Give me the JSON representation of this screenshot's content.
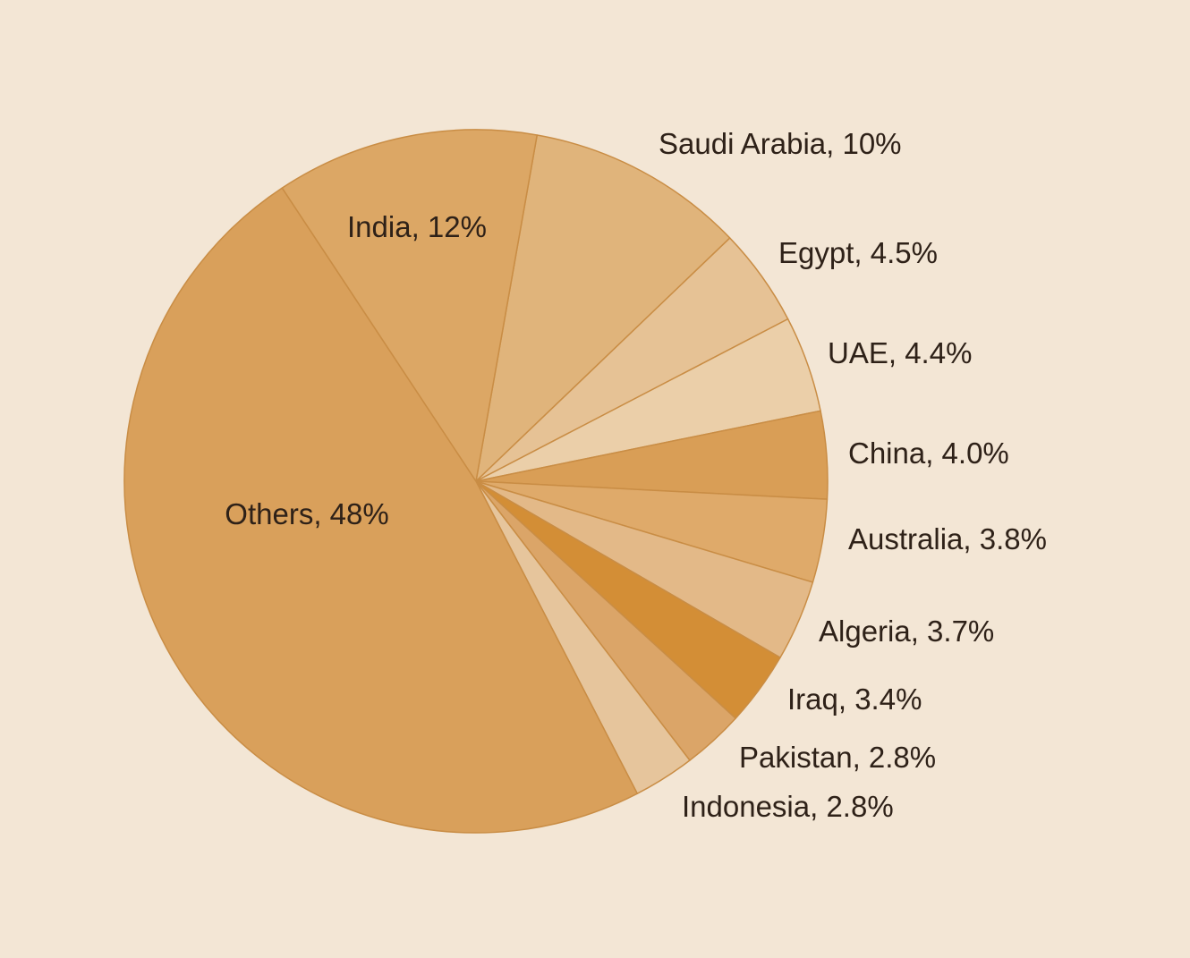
{
  "chart_data": {
    "type": "pie",
    "title": "",
    "slices": [
      {
        "label": "Saudi Arabia, 10%",
        "name": "Saudi Arabia",
        "value": 10,
        "color": "#e0b47b"
      },
      {
        "label": "Egypt, 4.5%",
        "name": "Egypt",
        "value": 4.5,
        "color": "#e6c295"
      },
      {
        "label": "UAE, 4.4%",
        "name": "UAE",
        "value": 4.4,
        "color": "#ebcfa9"
      },
      {
        "label": "China, 4.0%",
        "name": "China",
        "value": 4.0,
        "color": "#d99e56"
      },
      {
        "label": "Australia, 3.8%",
        "name": "Australia",
        "value": 3.8,
        "color": "#dfaa6a"
      },
      {
        "label": "Algeria, 3.7%",
        "name": "Algeria",
        "value": 3.7,
        "color": "#e3b988"
      },
      {
        "label": "Iraq, 3.4%",
        "name": "Iraq",
        "value": 3.4,
        "color": "#d38e36"
      },
      {
        "label": "Pakistan, 2.8%",
        "name": "Pakistan",
        "value": 2.8,
        "color": "#dba568"
      },
      {
        "label": "Indonesia, 2.8%",
        "name": "Indonesia",
        "value": 2.8,
        "color": "#e6c59c"
      },
      {
        "label": "Others, 48%",
        "name": "Others",
        "value": 48,
        "color": "#d9a05b"
      },
      {
        "label": "India, 12%",
        "name": "India",
        "value": 12,
        "color": "#dca765"
      }
    ],
    "start_angle_deg": 10,
    "direction": "clockwise",
    "stroke_color": "#c98d45",
    "background": "#f3e6d5"
  }
}
